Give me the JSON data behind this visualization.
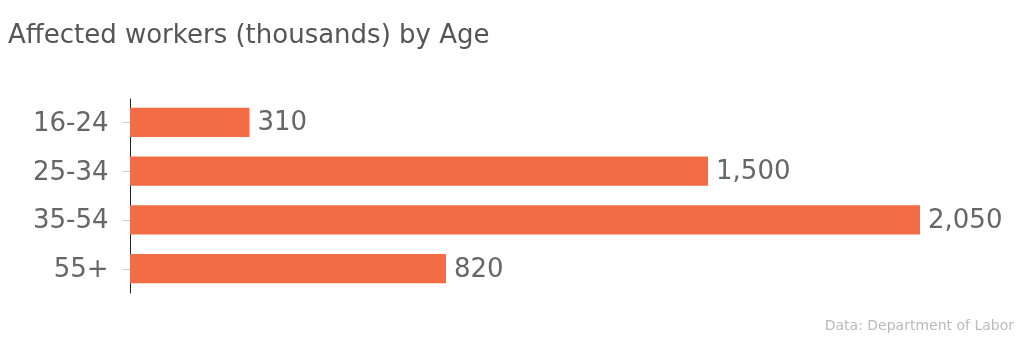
{
  "chart_data": {
    "type": "bar",
    "orientation": "horizontal",
    "title": "Affected workers (thousands) by Age",
    "categories": [
      "16-24",
      "25-34",
      "35-54",
      "55+"
    ],
    "values": [
      310,
      1500,
      2050,
      820
    ],
    "value_labels": [
      "310",
      "1,500",
      "2,050",
      "820"
    ],
    "color": "#f26c45",
    "annotations": [
      "Data: Department of Labor"
    ]
  }
}
